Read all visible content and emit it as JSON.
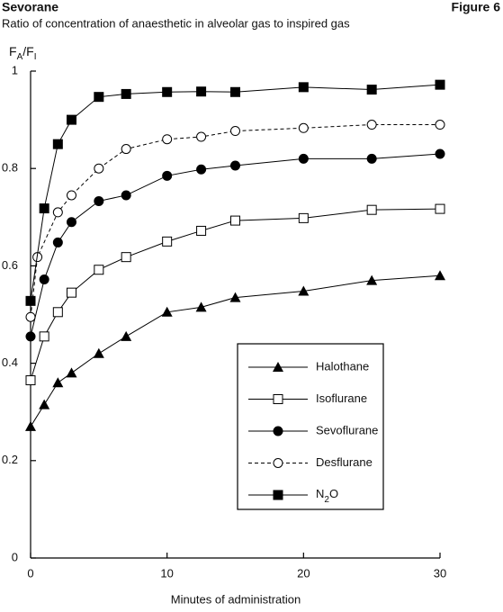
{
  "chart_data": {
    "type": "line",
    "title": "Sevorane",
    "figure_label": "Figure 6",
    "subtitle": "Ratio of concentration of anaesthetic in alveolar gas to inspired gas",
    "y_label": "FA/FI",
    "x_label": "Minutes of administration",
    "xlim": [
      0,
      30
    ],
    "xticks": [
      0,
      10,
      20,
      30
    ],
    "ylim": [
      0,
      1
    ],
    "yticks": [
      0,
      0.2,
      0.4,
      0.6,
      0.8,
      1
    ],
    "grid": false,
    "series": [
      {
        "name": "Halothane",
        "color": "#000000",
        "marker": "triangle",
        "dashed": false,
        "x": [
          0,
          1,
          2,
          3,
          5,
          7,
          10,
          12.5,
          15,
          20,
          25,
          30
        ],
        "values": [
          0.27,
          0.315,
          0.36,
          0.38,
          0.42,
          0.455,
          0.505,
          0.515,
          0.535,
          0.548,
          0.57,
          0.58
        ]
      },
      {
        "name": "Isoflurane",
        "color": "#000000",
        "marker": "open-square",
        "dashed": false,
        "x": [
          0,
          1,
          2,
          3,
          5,
          7,
          10,
          12.5,
          15,
          20,
          25,
          30
        ],
        "values": [
          0.365,
          0.455,
          0.505,
          0.545,
          0.592,
          0.618,
          0.65,
          0.672,
          0.693,
          0.698,
          0.715,
          0.717
        ]
      },
      {
        "name": "Sevoflurane",
        "color": "#000000",
        "marker": "filled-circle",
        "dashed": false,
        "x": [
          0,
          1,
          2,
          3,
          5,
          7,
          10,
          12.5,
          15,
          20,
          25,
          30
        ],
        "values": [
          0.455,
          0.572,
          0.648,
          0.69,
          0.733,
          0.745,
          0.785,
          0.798,
          0.806,
          0.82,
          0.82,
          0.83
        ]
      },
      {
        "name": "Desflurane",
        "color": "#000000",
        "marker": "open-circle",
        "dashed": true,
        "x": [
          0,
          0.5,
          2,
          3,
          5,
          7,
          10,
          12.5,
          15,
          20,
          25,
          30
        ],
        "values": [
          0.495,
          0.618,
          0.71,
          0.745,
          0.8,
          0.84,
          0.86,
          0.865,
          0.877,
          0.883,
          0.89,
          0.89
        ]
      },
      {
        "name": "N2O",
        "color": "#000000",
        "marker": "filled-square",
        "dashed": false,
        "x": [
          0,
          1,
          2,
          3,
          5,
          7,
          10,
          12.5,
          15,
          20,
          25,
          30
        ],
        "values": [
          0.528,
          0.718,
          0.85,
          0.9,
          0.947,
          0.953,
          0.957,
          0.958,
          0.957,
          0.967,
          0.962,
          0.972
        ]
      }
    ]
  }
}
